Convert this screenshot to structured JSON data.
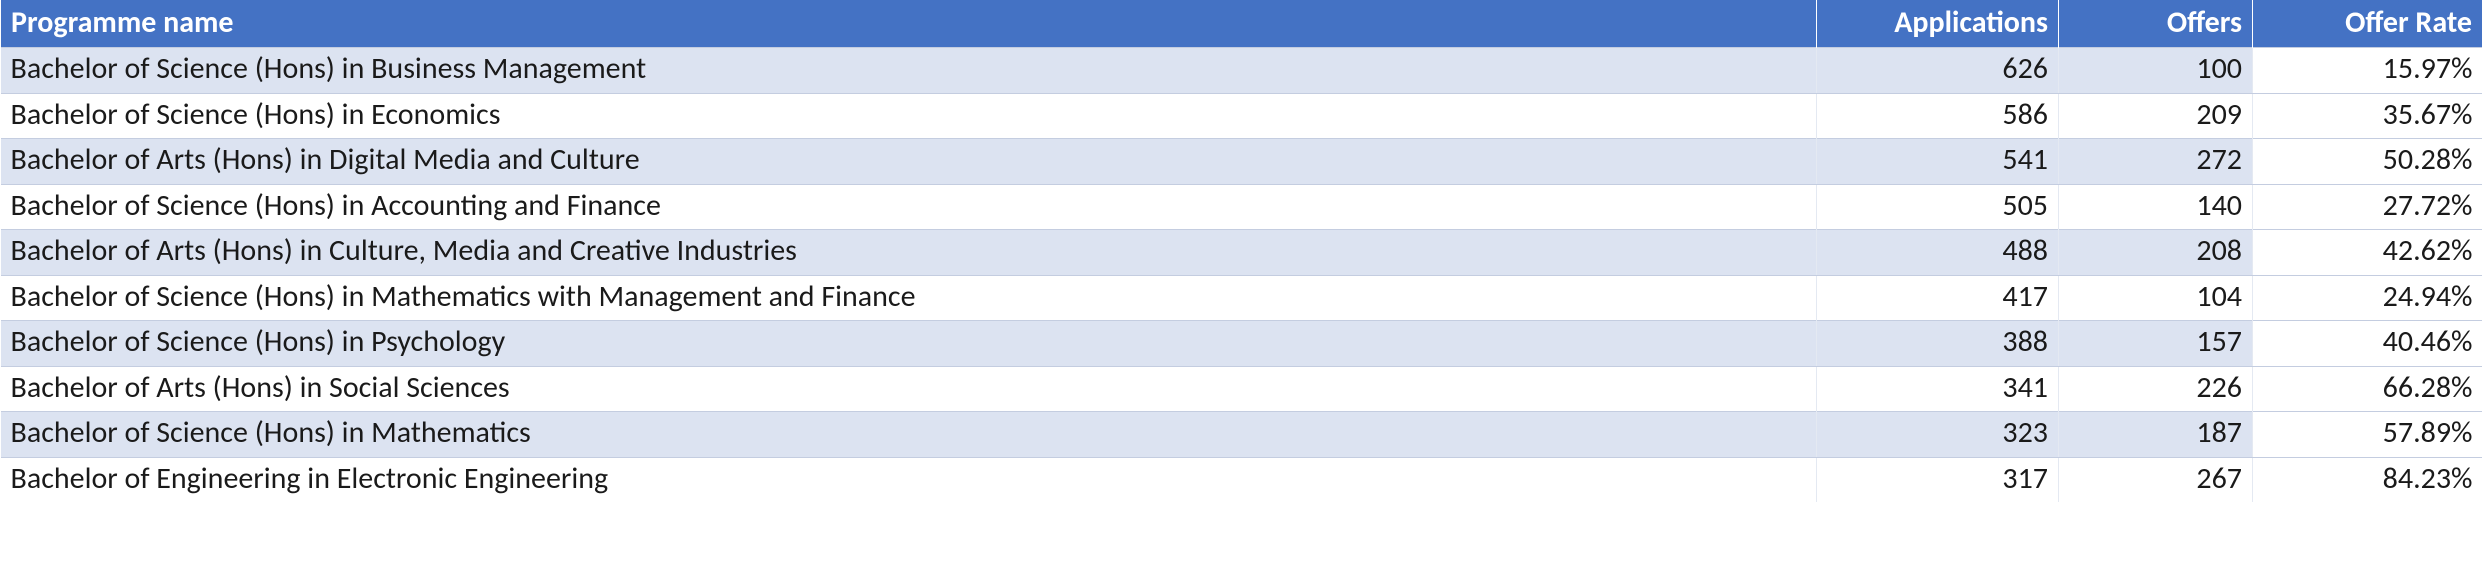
{
  "type": "table",
  "header": {
    "bg_color": "#4472c4",
    "text_color": "#ffffff",
    "font_size_pt": 22,
    "columns": [
      {
        "key": "name",
        "label": "Programme name",
        "align": "left"
      },
      {
        "key": "apps",
        "label": "Applications",
        "align": "right"
      },
      {
        "key": "offers",
        "label": "Offers",
        "align": "right"
      },
      {
        "key": "rate",
        "label": "Offer Rate",
        "align": "right"
      }
    ]
  },
  "body": {
    "band_color_a": "#dce3f1",
    "band_color_b": "#ffffff",
    "offer_rate_bg": "#ffffff",
    "text_color": "#1a1a1a",
    "font_size_pt": 22,
    "grid_color": "#c4cde0"
  },
  "rows": [
    {
      "name": "Bachelor of Science (Hons) in Business Management",
      "apps": "626",
      "offers": "100",
      "rate": "15.97%"
    },
    {
      "name": "Bachelor of Science (Hons) in Economics",
      "apps": "586",
      "offers": "209",
      "rate": "35.67%"
    },
    {
      "name": "Bachelor of Arts (Hons) in Digital Media and Culture",
      "apps": "541",
      "offers": "272",
      "rate": "50.28%"
    },
    {
      "name": "Bachelor of Science (Hons) in Accounting and Finance",
      "apps": "505",
      "offers": "140",
      "rate": "27.72%"
    },
    {
      "name": "Bachelor of Arts (Hons) in Culture, Media and Creative Industries",
      "apps": "488",
      "offers": "208",
      "rate": "42.62%"
    },
    {
      "name": "Bachelor of Science (Hons) in Mathematics with Management and Finance",
      "apps": "417",
      "offers": "104",
      "rate": "24.94%"
    },
    {
      "name": "Bachelor of Science (Hons) in Psychology",
      "apps": "388",
      "offers": "157",
      "rate": "40.46%"
    },
    {
      "name": "Bachelor of Arts (Hons) in Social Sciences",
      "apps": "341",
      "offers": "226",
      "rate": "66.28%"
    },
    {
      "name": "Bachelor of Science (Hons) in Mathematics",
      "apps": "323",
      "offers": "187",
      "rate": "57.89%"
    },
    {
      "name": "Bachelor of Engineering in Electronic Engineering",
      "apps": "317",
      "offers": "267",
      "rate": "84.23%"
    }
  ]
}
